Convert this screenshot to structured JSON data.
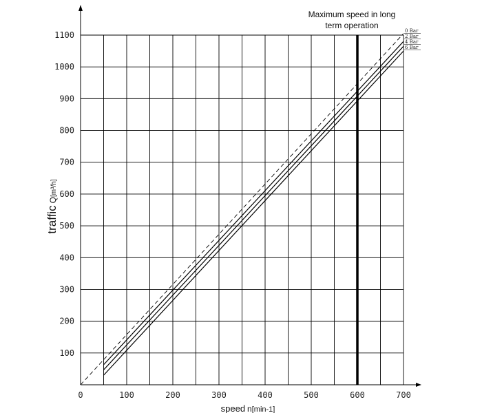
{
  "chart_data": {
    "type": "line",
    "title": "",
    "xlabel": "speed",
    "xlabel_symbol": "n",
    "xlabel_unit": "[min-1]",
    "ylabel": "traffic",
    "ylabel_symbol": "Q",
    "ylabel_unit": "[m³/h]",
    "xlim": [
      0,
      700
    ],
    "ylim": [
      0,
      1100
    ],
    "x_ticks": [
      0,
      100,
      200,
      300,
      400,
      500,
      600,
      700
    ],
    "y_ticks": [
      100,
      200,
      300,
      400,
      500,
      600,
      700,
      800,
      900,
      1000,
      1100
    ],
    "grid": true,
    "legend_position": "top-right",
    "series": [
      {
        "name": "0 Bar",
        "style": "dashed",
        "x": [
          0,
          700
        ],
        "y": [
          0,
          1105
        ]
      },
      {
        "name": "2 Bar",
        "style": "solid",
        "x": [
          50,
          700
        ],
        "y": [
          63,
          1080
        ]
      },
      {
        "name": "4 Bar",
        "style": "solid",
        "x": [
          50,
          700
        ],
        "y": [
          47,
          1065
        ]
      },
      {
        "name": "6 Bar",
        "style": "solid",
        "x": [
          50,
          700
        ],
        "y": [
          30,
          1050
        ]
      }
    ],
    "vertical_line": {
      "x": 600
    },
    "annotation": [
      "Maximum speed in long",
      "term operation"
    ]
  }
}
